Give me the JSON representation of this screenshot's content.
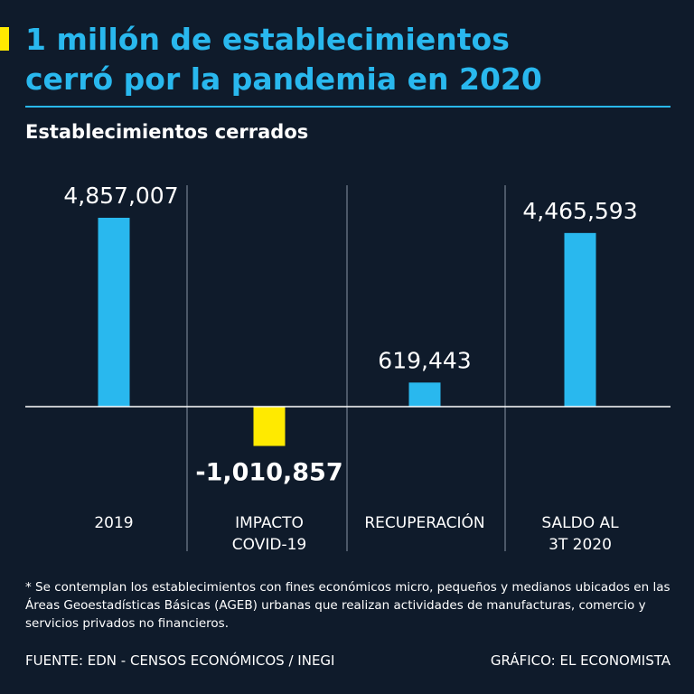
{
  "header": {
    "title_line1": "1 millón de establecimientos",
    "title_line2": "cerró por la pandemia en 2020",
    "subtitle": "Establecimientos cerrados"
  },
  "colors": {
    "background": "#0f1b2b",
    "positive": "#29b8ee",
    "negative": "#ffea00",
    "text": "#ffffff"
  },
  "chart_data": {
    "type": "bar",
    "title": "Establecimientos cerrados",
    "categories": [
      "2019",
      "IMPACTO COVID-19",
      "RECUPERACIÓN",
      "SALDO AL 3T 2020"
    ],
    "category_lines": [
      [
        "2019"
      ],
      [
        "IMPACTO",
        "COVID-19"
      ],
      [
        "RECUPERACIÓN"
      ],
      [
        "SALDO AL",
        "3T 2020"
      ]
    ],
    "values": [
      4857007,
      -1010857,
      619443,
      4465593
    ],
    "labels": [
      "4,857,007",
      "-1,010,857",
      "619,443",
      "4,465,593"
    ],
    "ylim": [
      -1300000,
      5600000
    ],
    "xlabel": "",
    "ylabel": ""
  },
  "footer": {
    "footnote": "* Se contemplan los establecimientos con fines económicos micro, pequeños y medianos ubicados en las Áreas Geoestadísticas Básicas (AGEB) urbanas que realizan actividades de manufacturas, comercio y servicios privados no financieros.",
    "source": "FUENTE: EDN - CENSOS ECONÓMICOS / INEGI",
    "credit": "GRÁFICO: EL ECONOMISTA"
  }
}
